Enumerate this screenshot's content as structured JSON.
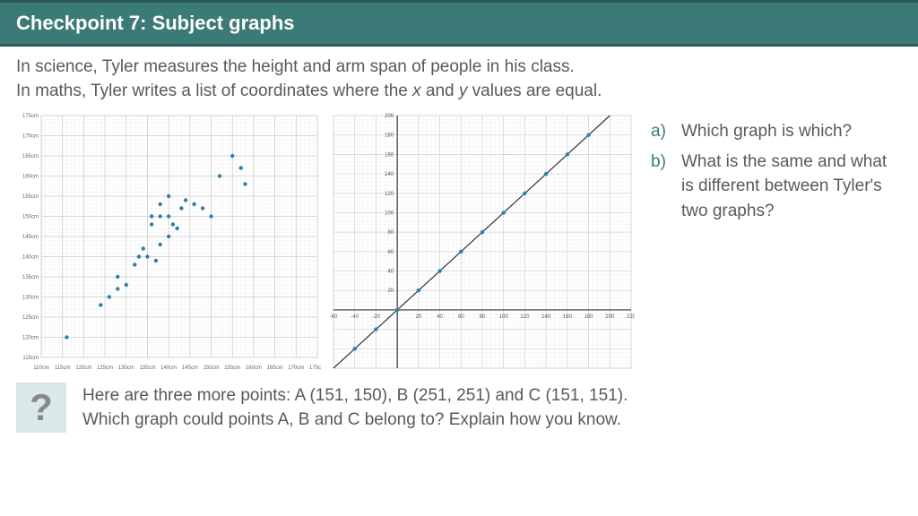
{
  "header": {
    "title": "Checkpoint 7: Subject graphs"
  },
  "intro": {
    "line1_pre": "In science, Tyler measures the height and arm span of people in his class.",
    "line2_pre": "In maths, Tyler writes a list of coordinates where the ",
    "line2_x": "x",
    "line2_mid": " and ",
    "line2_y": "y",
    "line2_post": " values are equal."
  },
  "questions": {
    "a_letter": "a)",
    "a_text": "Which graph is which?",
    "b_letter": "b)",
    "b_text": "What is the same and what is different between Tyler's two graphs?"
  },
  "footer": {
    "line1": "Here are three more points: A (151, 150), B (251, 251) and C (151, 151).",
    "line2": "Which graph could points A, B and C belong to? Explain how you know.",
    "icon_glyph": "?"
  },
  "scatter_chart": {
    "type": "scatter",
    "xlim": [
      110,
      175
    ],
    "ylim": [
      115,
      175
    ],
    "xtick_step": 5,
    "ytick_step": 5,
    "x_unit": "cm",
    "y_unit": "cm",
    "background_color": "#ffffff",
    "grid_minor_color": "#eeeeee",
    "grid_major_color": "#cccccc",
    "axis_label_color": "#666666",
    "axis_label_fontsize": 6,
    "marker_color": "#2e7ea8",
    "marker_radius": 2.2,
    "points": [
      [
        116,
        120
      ],
      [
        124,
        128
      ],
      [
        126,
        130
      ],
      [
        128,
        132
      ],
      [
        128,
        135
      ],
      [
        130,
        133
      ],
      [
        132,
        138
      ],
      [
        133,
        140
      ],
      [
        134,
        142
      ],
      [
        135,
        140
      ],
      [
        136,
        148
      ],
      [
        137,
        139
      ],
      [
        138,
        143
      ],
      [
        136,
        150
      ],
      [
        138,
        150
      ],
      [
        140,
        150
      ],
      [
        140,
        145
      ],
      [
        141,
        148
      ],
      [
        142,
        147
      ],
      [
        138,
        153
      ],
      [
        143,
        152
      ],
      [
        140,
        155
      ],
      [
        144,
        154
      ],
      [
        146,
        153
      ],
      [
        148,
        152
      ],
      [
        150,
        150
      ],
      [
        152,
        160
      ],
      [
        155,
        165
      ],
      [
        158,
        158
      ],
      [
        157,
        162
      ]
    ]
  },
  "line_chart": {
    "type": "line-scatter",
    "xlim": [
      -60,
      220
    ],
    "ylim": [
      -60,
      200
    ],
    "xtick_step": 20,
    "ytick_step": 20,
    "background_color": "#ffffff",
    "grid_minor_color": "#eeeeee",
    "grid_major_color": "#d0d0d0",
    "axis_color": "#333333",
    "axis_label_color": "#555555",
    "axis_label_fontsize": 6,
    "line_color": "#333333",
    "line_width": 1.2,
    "marker_color": "#2e7ea8",
    "marker_radius": 2.2,
    "line_start": [
      -60,
      -60
    ],
    "line_end": [
      200,
      200
    ],
    "points": [
      [
        -40,
        -40
      ],
      [
        -20,
        -20
      ],
      [
        0,
        0
      ],
      [
        20,
        20
      ],
      [
        40,
        40
      ],
      [
        60,
        60
      ],
      [
        80,
        80
      ],
      [
        100,
        100
      ],
      [
        120,
        120
      ],
      [
        140,
        140
      ],
      [
        160,
        160
      ],
      [
        180,
        180
      ]
    ]
  }
}
